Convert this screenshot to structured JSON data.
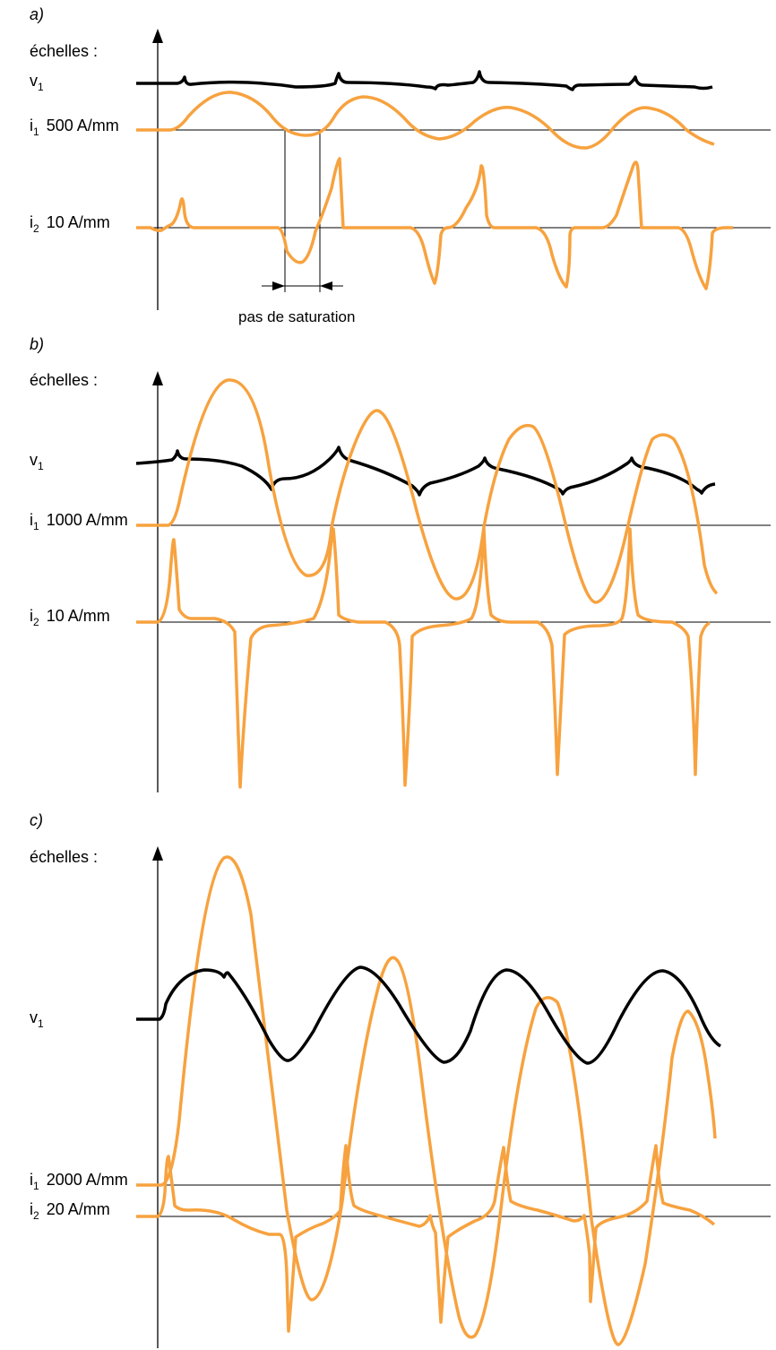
{
  "colors": {
    "voltage": "#000000",
    "current": "#f7a23f",
    "axes": "#000000"
  },
  "panels": [
    {
      "id": "a",
      "label": "a)",
      "scales_title": "échelles :",
      "v1": {
        "symbol": "v",
        "sub": "1"
      },
      "i1": {
        "symbol": "i",
        "sub": "1",
        "scale": "500 A/mm"
      },
      "i2": {
        "symbol": "i",
        "sub": "2",
        "scale": "10 A/mm"
      },
      "annotation": "pas de saturation"
    },
    {
      "id": "b",
      "label": "b)",
      "scales_title": "échelles :",
      "v1": {
        "symbol": "v",
        "sub": "1"
      },
      "i1": {
        "symbol": "i",
        "sub": "1",
        "scale": "1000 A/mm"
      },
      "i2": {
        "symbol": "i",
        "sub": "2",
        "scale": "10 A/mm"
      }
    },
    {
      "id": "c",
      "label": "c)",
      "scales_title": "échelles :",
      "v1": {
        "symbol": "v",
        "sub": "1"
      },
      "i1": {
        "symbol": "i",
        "sub": "1",
        "scale": "2000 A/mm"
      },
      "i2": {
        "symbol": "i",
        "sub": "2",
        "scale": "20 A/mm"
      }
    }
  ]
}
